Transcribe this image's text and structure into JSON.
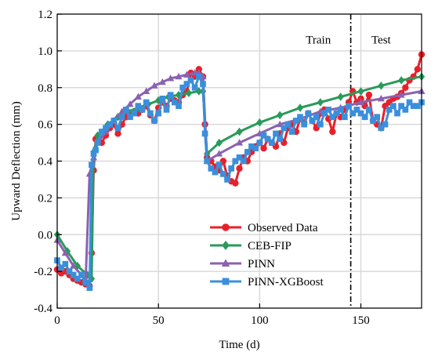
{
  "chart_data": {
    "type": "line",
    "title": "",
    "xlabel": "Time (d)",
    "ylabel": "Upward Deflection (mm)",
    "xlim": [
      0,
      180
    ],
    "ylim": [
      -0.4,
      1.2
    ],
    "xticks": [
      0,
      50,
      100,
      150
    ],
    "yticks": [
      -0.4,
      -0.2,
      0.0,
      0.2,
      0.4,
      0.6,
      0.8,
      1.0,
      1.2
    ],
    "ytick_labels": [
      "-0.4",
      "-0.2",
      "0.0",
      "0.2",
      "0.4",
      "0.6",
      "0.8",
      "1.0",
      "1.2"
    ],
    "xtick_labels": [
      "0",
      "50",
      "100",
      "150"
    ],
    "grid": true,
    "legend_position": "bottom-right",
    "annotations": [
      {
        "text": "Train",
        "x": 129,
        "y": 1.04
      },
      {
        "text": "Test",
        "x": 160,
        "y": 1.04
      }
    ],
    "split_line_x": 145,
    "series": [
      {
        "name": "Observed Data",
        "color": "#e8202a",
        "marker": "circle",
        "x": [
          0,
          2,
          4,
          6,
          8,
          10,
          12,
          14,
          16,
          17,
          18,
          19,
          20,
          22,
          24,
          26,
          28,
          30,
          32,
          34,
          36,
          38,
          40,
          42,
          44,
          46,
          48,
          50,
          52,
          54,
          56,
          58,
          60,
          62,
          64,
          66,
          68,
          70,
          72,
          73,
          74,
          76,
          78,
          80,
          82,
          84,
          86,
          88,
          90,
          92,
          94,
          96,
          98,
          100,
          102,
          104,
          106,
          108,
          110,
          112,
          114,
          116,
          118,
          120,
          122,
          124,
          126,
          128,
          130,
          132,
          134,
          136,
          138,
          140,
          142,
          144,
          146,
          148,
          150,
          152,
          154,
          156,
          158,
          160,
          162,
          164,
          166,
          168,
          170,
          172,
          174,
          176,
          178,
          180
        ],
        "y": [
          -0.19,
          -0.21,
          -0.2,
          -0.22,
          -0.24,
          -0.25,
          -0.26,
          -0.27,
          -0.28,
          -0.1,
          0.35,
          0.52,
          0.53,
          0.5,
          0.54,
          0.58,
          0.6,
          0.55,
          0.6,
          0.64,
          0.66,
          0.67,
          0.66,
          0.68,
          0.7,
          0.65,
          0.62,
          0.69,
          0.72,
          0.7,
          0.74,
          0.73,
          0.72,
          0.76,
          0.78,
          0.88,
          0.86,
          0.9,
          0.86,
          0.6,
          0.42,
          0.4,
          0.37,
          0.35,
          0.4,
          0.32,
          0.29,
          0.28,
          0.36,
          0.42,
          0.4,
          0.45,
          0.48,
          0.5,
          0.47,
          0.52,
          0.5,
          0.48,
          0.55,
          0.5,
          0.58,
          0.6,
          0.56,
          0.63,
          0.61,
          0.66,
          0.62,
          0.58,
          0.66,
          0.68,
          0.63,
          0.56,
          0.66,
          0.64,
          0.68,
          0.72,
          0.78,
          0.72,
          0.74,
          0.7,
          0.76,
          0.62,
          0.6,
          0.58,
          0.7,
          0.72,
          0.74,
          0.75,
          0.77,
          0.8,
          0.84,
          0.86,
          0.9,
          0.98
        ]
      },
      {
        "name": "CEB-FIP",
        "color": "#2a9a5a",
        "marker": "diamond",
        "x": [
          0,
          5,
          10,
          15,
          17,
          18,
          20,
          25,
          30,
          35,
          40,
          45,
          50,
          55,
          60,
          65,
          70,
          72,
          74,
          80,
          90,
          100,
          110,
          120,
          130,
          140,
          150,
          160,
          170,
          180
        ],
        "y": [
          0.0,
          -0.09,
          -0.17,
          -0.22,
          -0.24,
          0.45,
          0.54,
          0.6,
          0.64,
          0.67,
          0.69,
          0.71,
          0.73,
          0.75,
          0.76,
          0.77,
          0.78,
          0.78,
          0.44,
          0.5,
          0.56,
          0.61,
          0.65,
          0.69,
          0.72,
          0.75,
          0.78,
          0.81,
          0.84,
          0.86
        ]
      },
      {
        "name": "PINN",
        "color": "#8a62b0",
        "marker": "triangle",
        "x": [
          0,
          4,
          8,
          12,
          14,
          16,
          18,
          20,
          24,
          28,
          32,
          36,
          40,
          44,
          48,
          52,
          56,
          60,
          64,
          68,
          70,
          72,
          74,
          80,
          90,
          100,
          110,
          120,
          130,
          140,
          150,
          160,
          170,
          180
        ],
        "y": [
          -0.03,
          -0.1,
          -0.17,
          -0.22,
          -0.26,
          0.33,
          0.42,
          0.5,
          0.56,
          0.62,
          0.67,
          0.71,
          0.75,
          0.78,
          0.81,
          0.83,
          0.85,
          0.86,
          0.87,
          0.88,
          0.88,
          0.86,
          0.4,
          0.44,
          0.5,
          0.55,
          0.6,
          0.63,
          0.67,
          0.69,
          0.72,
          0.74,
          0.76,
          0.78
        ]
      },
      {
        "name": "PINN-XGBoost",
        "color": "#3a8fdc",
        "marker": "square",
        "x": [
          0,
          2,
          4,
          6,
          8,
          10,
          12,
          14,
          16,
          17,
          18,
          19,
          20,
          22,
          24,
          26,
          28,
          30,
          32,
          34,
          36,
          38,
          40,
          42,
          44,
          46,
          48,
          50,
          52,
          54,
          56,
          58,
          60,
          62,
          64,
          66,
          68,
          70,
          72,
          73,
          74,
          76,
          78,
          80,
          82,
          84,
          86,
          88,
          90,
          92,
          94,
          96,
          98,
          100,
          102,
          104,
          106,
          108,
          110,
          112,
          114,
          116,
          118,
          120,
          122,
          124,
          126,
          128,
          130,
          132,
          134,
          136,
          138,
          140,
          142,
          144,
          146,
          148,
          150,
          152,
          154,
          156,
          158,
          160,
          162,
          164,
          166,
          168,
          170,
          172,
          174,
          176,
          178,
          180
        ],
        "y": [
          -0.14,
          -0.18,
          -0.16,
          -0.2,
          -0.22,
          -0.24,
          -0.22,
          -0.26,
          -0.29,
          0.38,
          0.44,
          0.46,
          0.5,
          0.56,
          0.58,
          0.6,
          0.62,
          0.58,
          0.64,
          0.68,
          0.64,
          0.66,
          0.7,
          0.68,
          0.72,
          0.66,
          0.62,
          0.66,
          0.74,
          0.68,
          0.76,
          0.72,
          0.7,
          0.8,
          0.82,
          0.84,
          0.8,
          0.86,
          0.82,
          0.55,
          0.4,
          0.36,
          0.34,
          0.38,
          0.33,
          0.3,
          0.36,
          0.4,
          0.42,
          0.4,
          0.45,
          0.48,
          0.47,
          0.5,
          0.54,
          0.52,
          0.5,
          0.55,
          0.52,
          0.58,
          0.6,
          0.56,
          0.62,
          0.64,
          0.6,
          0.66,
          0.62,
          0.64,
          0.6,
          0.66,
          0.68,
          0.64,
          0.66,
          0.68,
          0.64,
          0.7,
          0.66,
          0.68,
          0.66,
          0.64,
          0.68,
          0.62,
          0.64,
          0.58,
          0.6,
          0.68,
          0.7,
          0.66,
          0.7,
          0.68,
          0.72,
          0.7,
          0.7,
          0.72
        ]
      }
    ]
  }
}
